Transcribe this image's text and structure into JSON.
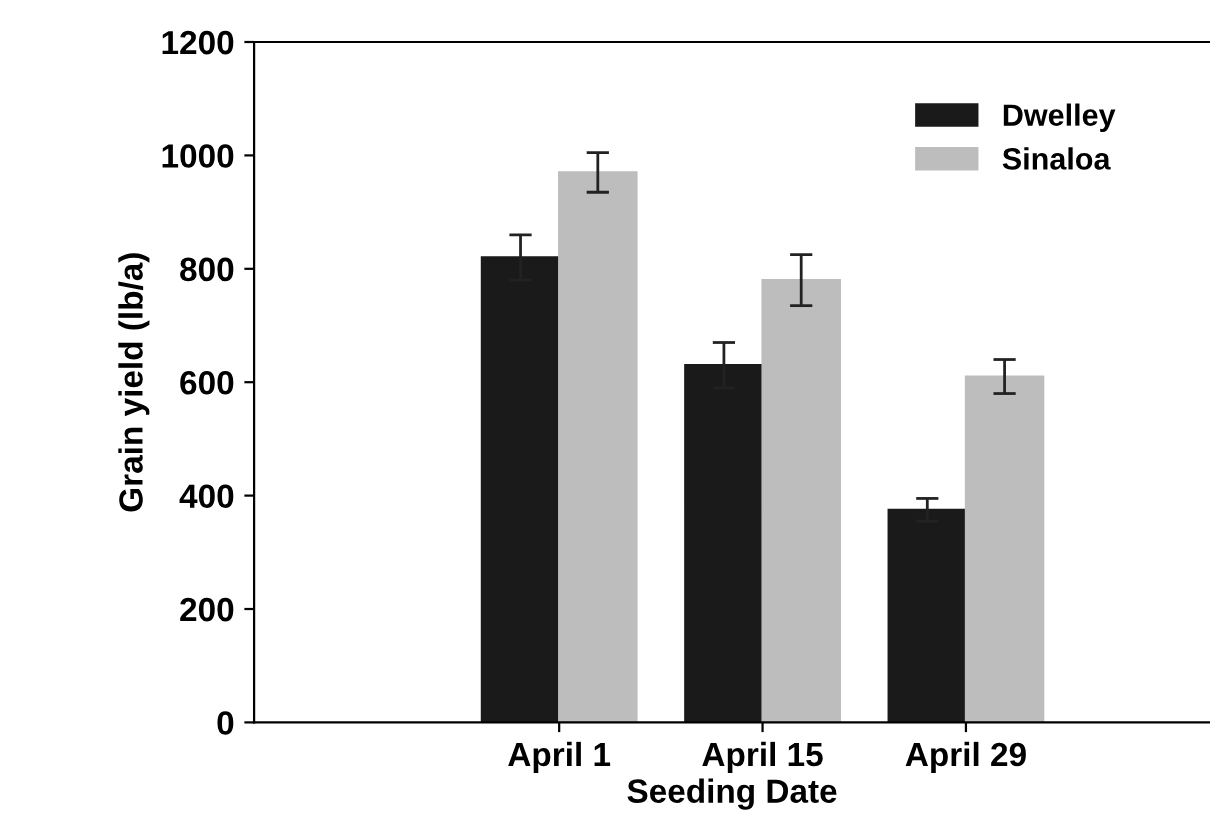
{
  "chart_data": {
    "type": "bar",
    "xlabel": "Seeding Date",
    "ylabel": "Grain yield (lb/a)",
    "categories": [
      "April 1",
      "April 15",
      "April 29"
    ],
    "series": [
      {
        "name": "Dwelley",
        "color": "#1a1a1a",
        "values": [
          820,
          630,
          375
        ],
        "errors": [
          40,
          40,
          20
        ]
      },
      {
        "name": "Sinaloa",
        "color": "#bdbdbd",
        "values": [
          970,
          780,
          610
        ],
        "errors": [
          35,
          45,
          30
        ]
      }
    ],
    "ylim": [
      0,
      1200
    ],
    "yticks": [
      0,
      200,
      400,
      600,
      800,
      1000,
      1200
    ],
    "grid": false,
    "legend": "top right"
  }
}
